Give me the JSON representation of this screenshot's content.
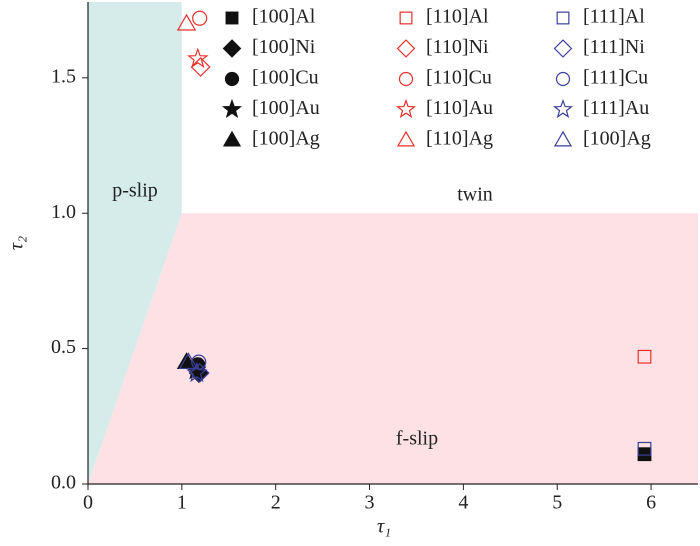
{
  "chart_data": {
    "type": "scatter",
    "x_label": "τ₁",
    "y_label": "τ₂",
    "xlim": [
      0,
      6.5
    ],
    "ylim": [
      0,
      1.78
    ],
    "xticks": [
      0,
      1,
      2,
      3,
      4,
      5,
      6
    ],
    "yticks": [
      {
        "value": 0,
        "label": "0.0"
      },
      {
        "value": 0.5,
        "label": "0.5"
      },
      {
        "value": 1,
        "label": "1.0"
      },
      {
        "value": 1.5,
        "label": "1.5"
      }
    ],
    "boundary": [
      1,
      1
    ],
    "regions": [
      {
        "name": "p-slip",
        "color": "#d5ecea"
      },
      {
        "name": "twin",
        "color": "#ffffff"
      },
      {
        "name": "f-slip",
        "color": "#fde1e4"
      }
    ],
    "series": [
      {
        "name": "[100]Al",
        "color": "#111111",
        "marker": "square",
        "filled": true,
        "x": [
          5.93
        ],
        "y": [
          0.11
        ]
      },
      {
        "name": "[100]Ni",
        "color": "#111111",
        "marker": "diamond",
        "filled": true,
        "x": [
          1.18
        ],
        "y": [
          0.41
        ]
      },
      {
        "name": "[100]Cu",
        "color": "#111111",
        "marker": "circle",
        "filled": true,
        "x": [
          1.17
        ],
        "y": [
          0.44
        ]
      },
      {
        "name": "[100]Au",
        "color": "#111111",
        "marker": "star",
        "filled": true,
        "x": [
          1.15
        ],
        "y": [
          0.42
        ]
      },
      {
        "name": "[100]Ag",
        "color": "#111111",
        "marker": "triangle",
        "filled": true,
        "x": [
          1.05
        ],
        "y": [
          0.45
        ]
      },
      {
        "name": "[110]Al",
        "color": "#e8302a",
        "marker": "square",
        "filled": false,
        "x": [
          5.93
        ],
        "y": [
          0.47
        ]
      },
      {
        "name": "[110]Ni",
        "color": "#e8302a",
        "marker": "diamond",
        "filled": false,
        "x": [
          1.2
        ],
        "y": [
          1.54
        ]
      },
      {
        "name": "[110]Cu",
        "color": "#e8302a",
        "marker": "circle",
        "filled": false,
        "x": [
          1.19
        ],
        "y": [
          1.72
        ]
      },
      {
        "name": "[110]Au",
        "color": "#e8302a",
        "marker": "star",
        "filled": false,
        "x": [
          1.17
        ],
        "y": [
          1.57
        ]
      },
      {
        "name": "[110]Ag",
        "color": "#e8302a",
        "marker": "triangle",
        "filled": false,
        "x": [
          1.05
        ],
        "y": [
          1.7
        ]
      },
      {
        "name": "[111]Al",
        "color": "#3b3f9a",
        "marker": "square",
        "filled": false,
        "x": [
          5.93
        ],
        "y": [
          0.13
        ]
      },
      {
        "name": "[111]Ni",
        "color": "#3b3f9a",
        "marker": "diamond",
        "filled": false,
        "x": [
          1.19
        ],
        "y": [
          0.41
        ]
      },
      {
        "name": "[111]Cu",
        "color": "#3b3f9a",
        "marker": "circle",
        "filled": false,
        "x": [
          1.18
        ],
        "y": [
          0.45
        ]
      },
      {
        "name": "[111]Au",
        "color": "#3b3f9a",
        "marker": "star",
        "filled": false,
        "x": [
          1.16
        ],
        "y": [
          0.41
        ]
      },
      {
        "name": "[100]Ag",
        "color": "#3b3f9a",
        "marker": "triangle",
        "filled": false,
        "x": [
          1.07
        ],
        "y": [
          0.45
        ]
      }
    ]
  }
}
